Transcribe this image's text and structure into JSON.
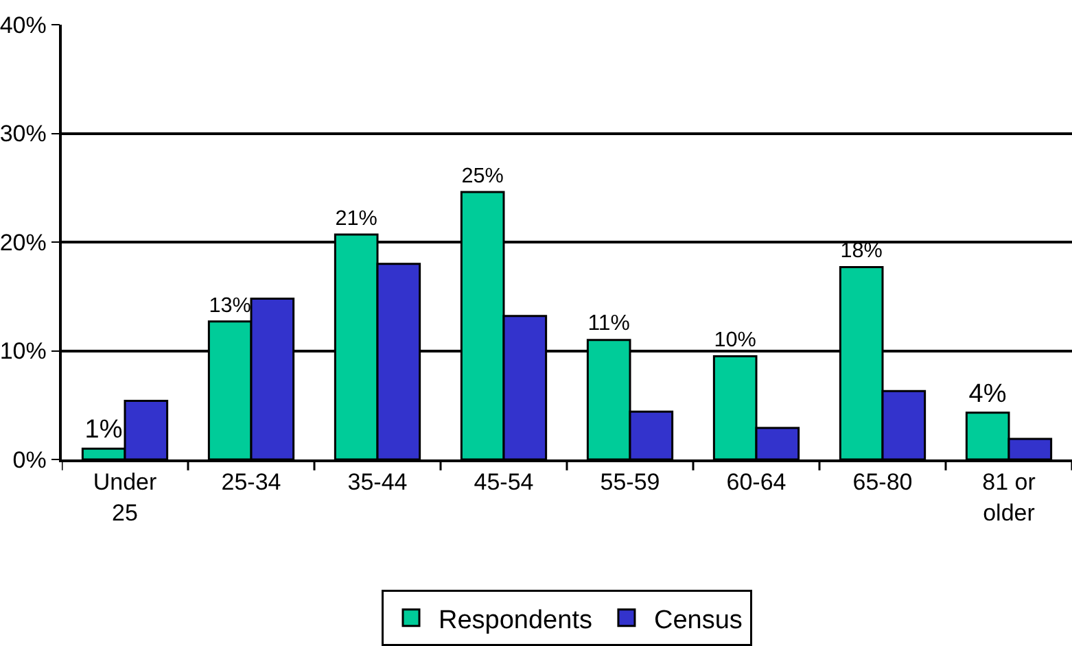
{
  "chart_data": {
    "type": "bar",
    "categories": [
      "Under 25",
      "25-34",
      "35-44",
      "45-54",
      "55-59",
      "60-64",
      "65-80",
      "81 or older"
    ],
    "series": [
      {
        "name": "Respondents",
        "color": "#00cc99",
        "values": [
          1,
          12.7,
          20.7,
          24.6,
          11,
          9.5,
          17.7,
          4.3
        ],
        "value_labels": [
          "1%",
          "13%",
          "21%",
          "25%",
          "11%",
          "10%",
          "18%",
          "4%"
        ]
      },
      {
        "name": "Census",
        "color": "#3333cc",
        "values": [
          5.4,
          14.8,
          18,
          13.2,
          4.4,
          2.9,
          6.3,
          1.9
        ]
      }
    ],
    "ylim": [
      0,
      40
    ],
    "yticks": [
      {
        "value": 0,
        "label": "0%"
      },
      {
        "value": 10,
        "label": "10%"
      },
      {
        "value": 20,
        "label": "20%"
      },
      {
        "value": 30,
        "label": "30%"
      },
      {
        "value": 40,
        "label": "40%"
      }
    ],
    "grid": "y",
    "legend": "bottom"
  }
}
